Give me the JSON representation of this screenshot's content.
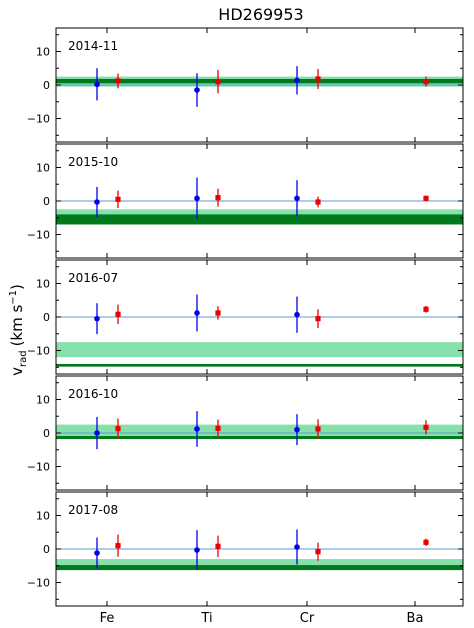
{
  "chart_data": {
    "type": "scatter",
    "title": "HD269953",
    "ylabel": "v_rad (km s^-1)",
    "ylabel_main": "v",
    "ylabel_sub": "rad",
    "ylabel_unit": "(km s",
    "ylabel_sup": "−1",
    "ylabel_close": ")",
    "categories": [
      "Fe",
      "Ti",
      "Cr",
      "Ba"
    ],
    "ylim": [
      -17,
      17
    ],
    "yticks": [
      -10,
      0,
      10
    ],
    "ytick_labels": [
      "−10",
      "0",
      "10"
    ],
    "colors": {
      "blue": "#0000ee",
      "red": "#ee0000",
      "light_band": "#86e0ab",
      "dark_band": "#007a1c",
      "zero_line": "#5a9ecf"
    },
    "panels": [
      {
        "label": "2014-11",
        "light_band": [
          -0.5,
          2.5
        ],
        "dark_band": [
          0.5,
          1.8
        ],
        "blue": [
          {
            "cat": "Fe",
            "y": 0.2,
            "err": 4.8
          },
          {
            "cat": "Ti",
            "y": -1.5,
            "err": 5.0
          },
          {
            "cat": "Cr",
            "y": 1.4,
            "err": 4.2
          }
        ],
        "red": [
          {
            "cat": "Fe",
            "y": 1.2,
            "err": 2.2
          },
          {
            "cat": "Ti",
            "y": 1.0,
            "err": 3.5
          },
          {
            "cat": "Cr",
            "y": 1.8,
            "err": 3.0
          },
          {
            "cat": "Ba",
            "y": 1.0,
            "err": 1.5
          }
        ]
      },
      {
        "label": "2015-10",
        "light_band": [
          -6.5,
          -2.5
        ],
        "dark_band": [
          -7.0,
          -4.0
        ],
        "blue": [
          {
            "cat": "Fe",
            "y": -0.3,
            "err": 4.5
          },
          {
            "cat": "Ti",
            "y": 0.8,
            "err": 6.2
          },
          {
            "cat": "Cr",
            "y": 0.8,
            "err": 5.4
          }
        ],
        "red": [
          {
            "cat": "Fe",
            "y": 0.5,
            "err": 2.6
          },
          {
            "cat": "Ti",
            "y": 1.0,
            "err": 2.7
          },
          {
            "cat": "Cr",
            "y": -0.3,
            "err": 1.6
          },
          {
            "cat": "Ba",
            "y": 0.8,
            "err": 0.5
          }
        ]
      },
      {
        "label": "2016-07",
        "light_band": [
          -12.0,
          -7.5
        ],
        "dark_band": [
          -14.8,
          -14.0
        ],
        "blue": [
          {
            "cat": "Fe",
            "y": -0.5,
            "err": 4.6
          },
          {
            "cat": "Ti",
            "y": 1.2,
            "err": 5.5
          },
          {
            "cat": "Cr",
            "y": 0.7,
            "err": 5.4
          }
        ],
        "red": [
          {
            "cat": "Fe",
            "y": 0.8,
            "err": 2.9
          },
          {
            "cat": "Ti",
            "y": 1.2,
            "err": 2.0
          },
          {
            "cat": "Cr",
            "y": -0.5,
            "err": 2.8
          },
          {
            "cat": "Ba",
            "y": 2.3,
            "err": 1.0
          }
        ]
      },
      {
        "label": "2016-10",
        "light_band": [
          -1.0,
          2.5
        ],
        "dark_band": [
          -1.8,
          -0.9
        ],
        "blue": [
          {
            "cat": "Fe",
            "y": 0.0,
            "err": 4.8
          },
          {
            "cat": "Ti",
            "y": 1.2,
            "err": 5.3
          },
          {
            "cat": "Cr",
            "y": 1.0,
            "err": 4.6
          }
        ],
        "red": [
          {
            "cat": "Fe",
            "y": 1.3,
            "err": 3.0
          },
          {
            "cat": "Ti",
            "y": 1.4,
            "err": 2.6
          },
          {
            "cat": "Cr",
            "y": 1.2,
            "err": 2.9
          },
          {
            "cat": "Ba",
            "y": 1.7,
            "err": 2.1
          }
        ]
      },
      {
        "label": "2017-08",
        "light_band": [
          -6.0,
          -3.0
        ],
        "dark_band": [
          -6.3,
          -4.8
        ],
        "blue": [
          {
            "cat": "Fe",
            "y": -1.2,
            "err": 4.6
          },
          {
            "cat": "Ti",
            "y": -0.3,
            "err": 5.9
          },
          {
            "cat": "Cr",
            "y": 0.6,
            "err": 5.2
          }
        ],
        "red": [
          {
            "cat": "Fe",
            "y": 1.0,
            "err": 3.3
          },
          {
            "cat": "Ti",
            "y": 0.8,
            "err": 3.2
          },
          {
            "cat": "Cr",
            "y": -0.8,
            "err": 2.7
          },
          {
            "cat": "Ba",
            "y": 2.0,
            "err": 1.1
          }
        ]
      }
    ]
  }
}
